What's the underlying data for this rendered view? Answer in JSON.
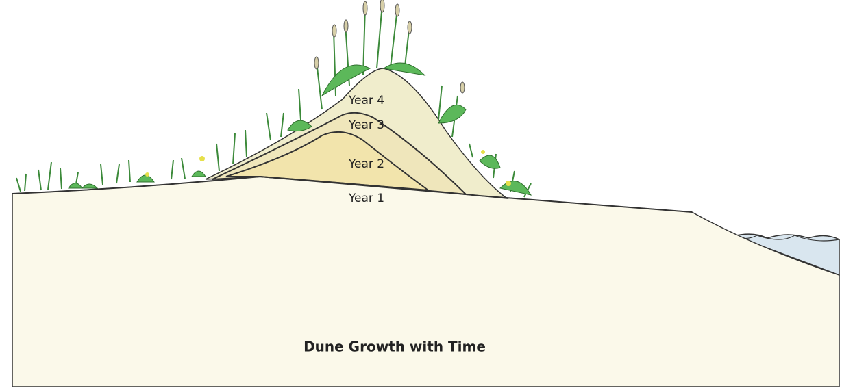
{
  "title": "Dune Growth with Time",
  "layers": [
    {
      "label": "Year 1"
    },
    {
      "label": "Year 2"
    },
    {
      "label": "Year 3"
    },
    {
      "label": "Year 4"
    }
  ]
}
